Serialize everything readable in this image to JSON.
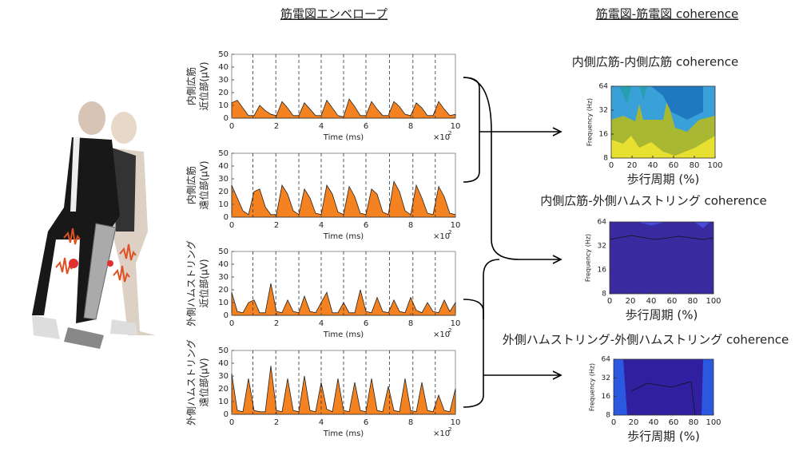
{
  "header": {
    "left_title": "筋電図エンベロープ",
    "right_title": "筋電図-筋電図 coherence"
  },
  "chart_data": [
    {
      "type": "area",
      "ylabel_lines": [
        "内側広筋",
        "近位部(μV)"
      ],
      "xlabel": "Time (ms)",
      "x_multiplier": "×10",
      "x_multiplier_exp": "2",
      "color": "#f58220",
      "x": [
        0,
        0.25,
        0.5,
        0.75,
        1,
        1.25,
        1.5,
        1.75,
        2,
        2.25,
        2.5,
        2.75,
        3,
        3.25,
        3.5,
        3.75,
        4,
        4.25,
        4.5,
        4.75,
        5,
        5.25,
        5.5,
        5.75,
        6,
        6.25,
        6.5,
        6.75,
        7,
        7.25,
        7.5,
        7.75,
        8,
        8.25,
        8.5,
        8.75,
        9,
        9.25,
        9.5,
        9.75,
        10
      ],
      "values": [
        12,
        14,
        8,
        2,
        2,
        10,
        6,
        3,
        2,
        13,
        8,
        2,
        2,
        12,
        7,
        2,
        2,
        14,
        8,
        2,
        1,
        15,
        9,
        2,
        2,
        13,
        7,
        2,
        2,
        13,
        9,
        3,
        2,
        12,
        8,
        2,
        2,
        13,
        7,
        2,
        3
      ],
      "cycle_lines": [
        0.95,
        1.97,
        3,
        4,
        5,
        6,
        7.05,
        8.1,
        9.1
      ],
      "xlim": [
        0,
        10
      ],
      "ylim": [
        0,
        50
      ],
      "xticks": [
        0,
        2,
        4,
        6,
        8,
        10
      ],
      "yticks": [
        0,
        10,
        20,
        30,
        40,
        50
      ]
    },
    {
      "type": "area",
      "ylabel_lines": [
        "内側広筋",
        "遠位部(μV)"
      ],
      "xlabel": "Time (ms)",
      "x_multiplier": "×10",
      "x_multiplier_exp": "2",
      "color": "#f58220",
      "x": [
        0,
        0.25,
        0.5,
        0.75,
        1,
        1.25,
        1.5,
        1.75,
        2,
        2.25,
        2.5,
        2.75,
        3,
        3.25,
        3.5,
        3.75,
        4,
        4.25,
        4.5,
        4.75,
        5,
        5.25,
        5.5,
        5.75,
        6,
        6.25,
        6.5,
        6.75,
        7,
        7.25,
        7.5,
        7.75,
        8,
        8.25,
        8.5,
        8.75,
        9,
        9.25,
        9.5,
        9.75,
        10
      ],
      "values": [
        25,
        15,
        5,
        2,
        20,
        22,
        8,
        2,
        2,
        25,
        18,
        5,
        2,
        22,
        15,
        3,
        2,
        25,
        18,
        4,
        2,
        24,
        16,
        3,
        2,
        22,
        18,
        4,
        2,
        28,
        20,
        5,
        2,
        25,
        15,
        3,
        2,
        24,
        16,
        3,
        2
      ],
      "cycle_lines": [
        0.95,
        1.97,
        3,
        4,
        5,
        6,
        7.05,
        8.1,
        9.1
      ],
      "xlim": [
        0,
        10
      ],
      "ylim": [
        0,
        50
      ],
      "xticks": [
        0,
        2,
        4,
        6,
        8,
        10
      ],
      "yticks": [
        0,
        10,
        20,
        30,
        40,
        50
      ]
    },
    {
      "type": "area",
      "ylabel_lines": [
        "外側ハムストリング",
        "近位部(μV)"
      ],
      "xlabel": "Time (ms)",
      "x_multiplier": "×10",
      "x_multiplier_exp": "2",
      "color": "#f58220",
      "x": [
        0,
        0.25,
        0.5,
        0.75,
        1,
        1.25,
        1.5,
        1.75,
        2,
        2.25,
        2.5,
        2.75,
        3,
        3.25,
        3.5,
        3.75,
        4,
        4.25,
        4.5,
        4.75,
        5,
        5.25,
        5.5,
        5.75,
        6,
        6.25,
        6.5,
        6.75,
        7,
        7.25,
        7.5,
        7.75,
        8,
        8.25,
        8.5,
        8.75,
        9,
        9.25,
        9.5,
        9.75,
        10
      ],
      "values": [
        18,
        3,
        2,
        10,
        12,
        2,
        2,
        25,
        3,
        2,
        12,
        3,
        2,
        15,
        3,
        2,
        10,
        18,
        2,
        2,
        10,
        2,
        2,
        20,
        3,
        2,
        14,
        3,
        2,
        12,
        3,
        2,
        14,
        4,
        2,
        10,
        3,
        2,
        12,
        3,
        10
      ],
      "cycle_lines": [
        0.95,
        1.97,
        3,
        4,
        5,
        6,
        7.05,
        8.1,
        9.1
      ],
      "xlim": [
        0,
        10
      ],
      "ylim": [
        0,
        50
      ],
      "xticks": [
        0,
        2,
        4,
        6,
        8,
        10
      ],
      "yticks": [
        0,
        10,
        20,
        30,
        40,
        50
      ]
    },
    {
      "type": "area",
      "ylabel_lines": [
        "外側ハムストリング",
        "遠位部(μV)"
      ],
      "xlabel": "Time (ms)",
      "x_multiplier": "×10",
      "x_multiplier_exp": "2",
      "color": "#f58220",
      "x": [
        0,
        0.25,
        0.5,
        0.75,
        1,
        1.25,
        1.5,
        1.75,
        2,
        2.25,
        2.5,
        2.75,
        3,
        3.25,
        3.5,
        3.75,
        4,
        4.25,
        4.5,
        4.75,
        5,
        5.25,
        5.5,
        5.75,
        6,
        6.25,
        6.5,
        6.75,
        7,
        7.25,
        7.5,
        7.75,
        8,
        8.25,
        8.5,
        8.75,
        9,
        9.25,
        9.5,
        9.75,
        10
      ],
      "values": [
        32,
        3,
        2,
        28,
        3,
        2,
        2,
        38,
        3,
        2,
        28,
        3,
        2,
        30,
        3,
        2,
        25,
        4,
        2,
        28,
        3,
        2,
        25,
        3,
        2,
        28,
        3,
        2,
        22,
        3,
        2,
        28,
        3,
        2,
        25,
        3,
        2,
        15,
        3,
        2,
        20
      ],
      "cycle_lines": [
        0.95,
        1.97,
        3,
        4,
        5,
        6,
        7.05,
        8.1,
        9.1
      ],
      "xlim": [
        0,
        10
      ],
      "ylim": [
        0,
        50
      ],
      "xticks": [
        0,
        2,
        4,
        6,
        8,
        10
      ],
      "yticks": [
        0,
        10,
        20,
        30,
        40,
        50
      ]
    },
    {
      "type": "contour",
      "title": "内側広筋-内側広筋 coherence",
      "ylabel": "Frequency (Hz)",
      "xlabel": "歩行周期 (%)",
      "log_y": true,
      "xlim": [
        0,
        100
      ],
      "ylim": [
        8,
        64
      ],
      "xticks": [
        0,
        20,
        40,
        60,
        80,
        100
      ],
      "yticks": [
        8,
        16,
        32,
        64
      ]
    },
    {
      "type": "contour",
      "title": "内側広筋-外側ハムストリング coherence",
      "ylabel": "Frequency (Hz)",
      "xlabel": "歩行周期 (%)",
      "log_y": true,
      "xlim": [
        0,
        100
      ],
      "ylim": [
        8,
        64
      ],
      "xticks": [
        0,
        20,
        40,
        60,
        80,
        100
      ],
      "yticks": [
        8,
        16,
        32,
        64
      ]
    },
    {
      "type": "contour",
      "title": "外側ハムストリング-外側ハムストリング coherence",
      "ylabel": "Frequency (Hz)",
      "xlabel": "歩行周期 (%)",
      "log_y": true,
      "xlim": [
        0,
        100
      ],
      "ylim": [
        8,
        64
      ],
      "xticks": [
        0,
        20,
        40,
        60,
        80,
        100
      ],
      "yticks": [
        8,
        16,
        32,
        64
      ]
    }
  ]
}
